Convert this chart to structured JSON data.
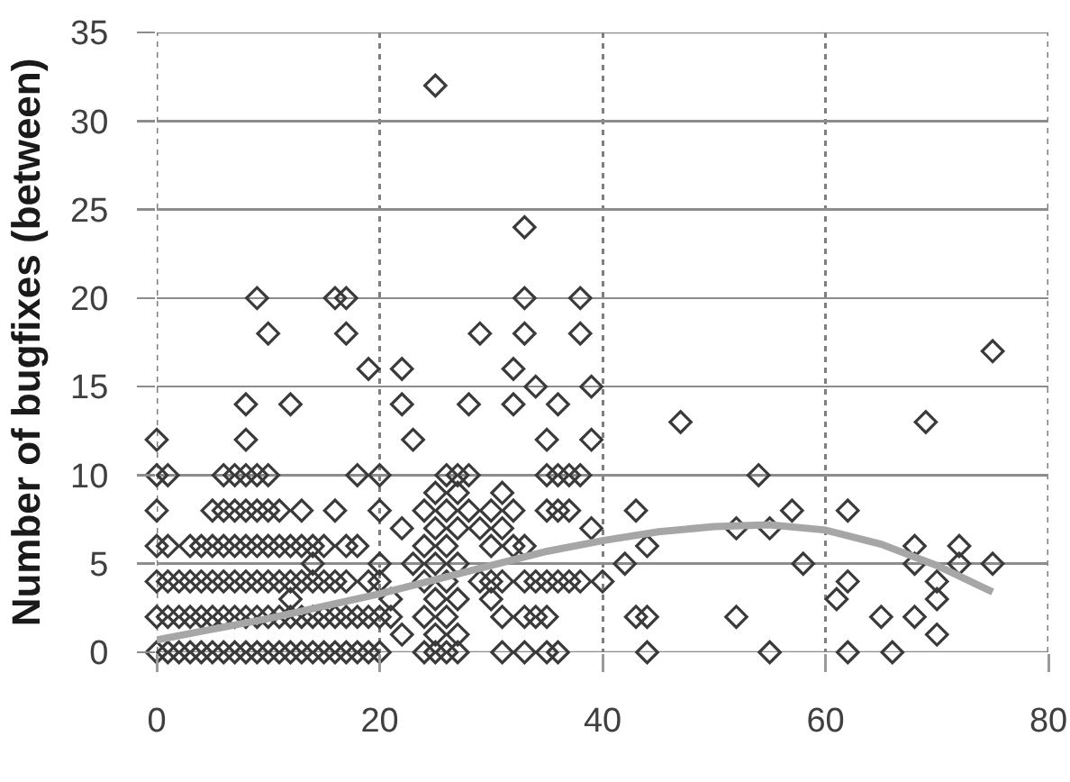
{
  "chart_data": {
    "type": "scatter",
    "ylabel": "Number of bugfixes (between)",
    "xlim": [
      0,
      80
    ],
    "xticks": [
      0,
      20,
      40,
      60,
      80
    ],
    "ylim": [
      0,
      35
    ],
    "yticks": [
      0,
      5,
      10,
      15,
      20,
      25,
      30,
      35
    ],
    "grid": true,
    "series": [
      {
        "color": "#3a3a3a",
        "marker": "diamond",
        "x": [
          0,
          1,
          2,
          3,
          4,
          5,
          6,
          7,
          8,
          9,
          10,
          11,
          12,
          13,
          14,
          15,
          16,
          17,
          18,
          19,
          20,
          24,
          25,
          26,
          27,
          31,
          33,
          35,
          36,
          44,
          55,
          62,
          66,
          0,
          1,
          2,
          3,
          4,
          5,
          6,
          7,
          8,
          9,
          10,
          11,
          12,
          13,
          14,
          15,
          16,
          17,
          18,
          19,
          20,
          21,
          24,
          26,
          31,
          33,
          34,
          35,
          43,
          44,
          52,
          65,
          68,
          0,
          1,
          2,
          3,
          4,
          5,
          6,
          7,
          8,
          9,
          10,
          11,
          12,
          13,
          14,
          15,
          16,
          17,
          19,
          20,
          24,
          26,
          29,
          30,
          31,
          33,
          34,
          35,
          36,
          37,
          38,
          40,
          62,
          70,
          0,
          1,
          3,
          4,
          5,
          6,
          7,
          8,
          9,
          10,
          11,
          12,
          13,
          14,
          15,
          17,
          18,
          24,
          26,
          30,
          32,
          33,
          44,
          68,
          72,
          0,
          5,
          6,
          7,
          8,
          9,
          10,
          11,
          13,
          16,
          20,
          24,
          26,
          28,
          30,
          32,
          35,
          36,
          37,
          43,
          57,
          62,
          0,
          1,
          6,
          7,
          8,
          9,
          10,
          18,
          20,
          26,
          27,
          28,
          35,
          36,
          37,
          38,
          54,
          0,
          8,
          23,
          35,
          39,
          8,
          12,
          22,
          28,
          32,
          36,
          19,
          22,
          32,
          34,
          39,
          10,
          17,
          29,
          33,
          38,
          9,
          16,
          17,
          33,
          38,
          33,
          25,
          25,
          25,
          25,
          25,
          25,
          27,
          27,
          27,
          27,
          27,
          29,
          31,
          31,
          30,
          39,
          42,
          52,
          55,
          58,
          61,
          68,
          70,
          70,
          72,
          75,
          69,
          47,
          75,
          22,
          21,
          20,
          12,
          14,
          23,
          22
        ],
        "values": [
          0,
          0,
          0,
          0,
          0,
          0,
          0,
          0,
          0,
          0,
          0,
          0,
          0,
          0,
          0,
          0,
          0,
          0,
          0,
          0,
          0,
          0,
          0,
          0,
          0,
          0,
          0,
          0,
          0,
          0,
          0,
          0,
          0,
          2,
          2,
          2,
          2,
          2,
          2,
          2,
          2,
          2,
          2,
          2,
          2,
          2,
          2,
          2,
          2,
          2,
          2,
          2,
          2,
          2,
          2,
          2,
          2,
          2,
          2,
          2,
          2,
          2,
          2,
          2,
          2,
          2,
          4,
          4,
          4,
          4,
          4,
          4,
          4,
          4,
          4,
          4,
          4,
          4,
          4,
          4,
          4,
          4,
          4,
          4,
          4,
          4,
          4,
          4,
          4,
          4,
          4,
          4,
          4,
          4,
          4,
          4,
          4,
          4,
          4,
          4,
          6,
          6,
          6,
          6,
          6,
          6,
          6,
          6,
          6,
          6,
          6,
          6,
          6,
          6,
          6,
          6,
          6,
          6,
          6,
          6,
          6,
          6,
          6,
          6,
          6,
          8,
          8,
          8,
          8,
          8,
          8,
          8,
          8,
          8,
          8,
          8,
          8,
          8,
          8,
          8,
          8,
          8,
          8,
          8,
          8,
          8,
          8,
          10,
          10,
          10,
          10,
          10,
          10,
          10,
          10,
          10,
          10,
          10,
          10,
          10,
          10,
          10,
          10,
          10,
          12,
          12,
          12,
          12,
          12,
          14,
          14,
          14,
          14,
          14,
          14,
          16,
          16,
          16,
          15,
          15,
          18,
          18,
          18,
          18,
          18,
          20,
          20,
          20,
          20,
          20,
          24,
          32,
          1,
          3,
          5,
          7,
          9,
          1,
          3,
          5,
          7,
          9,
          7,
          7,
          9,
          3,
          7,
          5,
          7,
          7,
          5,
          3,
          5,
          1,
          3,
          5,
          5,
          13,
          13,
          17,
          1,
          3,
          5,
          3,
          5,
          5,
          7
        ]
      },
      {
        "type": "line",
        "color": "#a6a6a6",
        "x": [
          0,
          5,
          10,
          15,
          20,
          25,
          30,
          35,
          40,
          45,
          50,
          55,
          60,
          65,
          70,
          75
        ],
        "values": [
          0.7,
          1.3,
          1.9,
          2.6,
          3.3,
          4.1,
          4.9,
          5.7,
          6.3,
          6.8,
          7.1,
          7.2,
          6.9,
          6.1,
          4.9,
          3.4
        ]
      }
    ]
  }
}
